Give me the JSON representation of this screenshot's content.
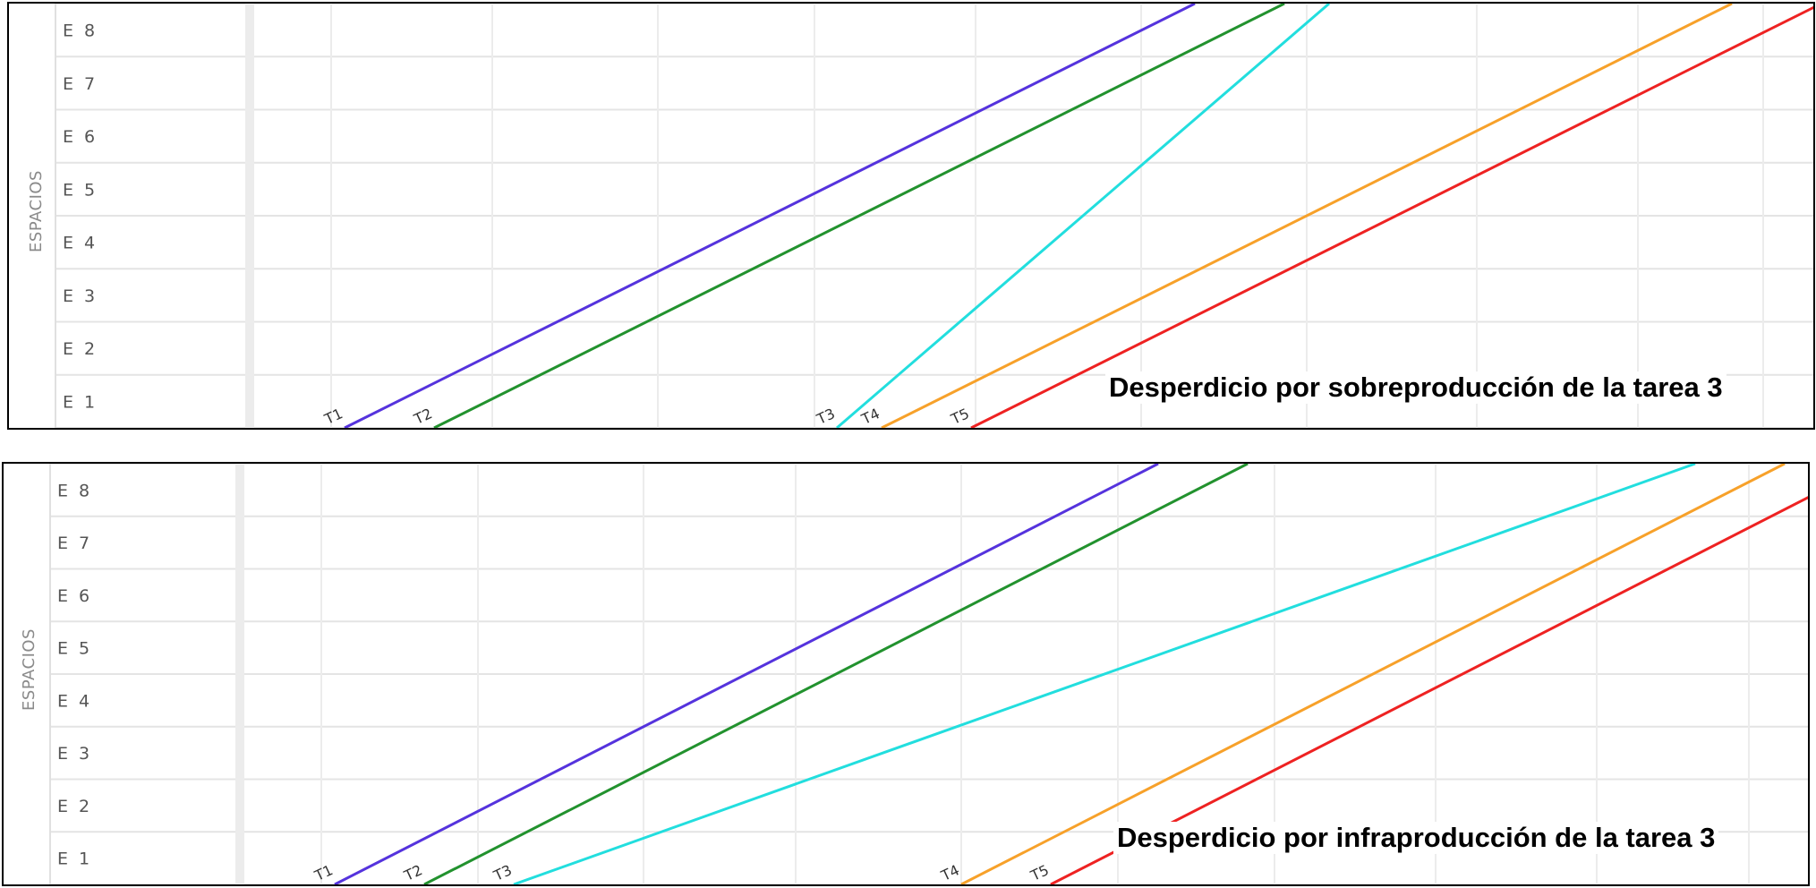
{
  "chart_data": [
    {
      "type": "line",
      "caption": "Desperdicio por sobreproducción de la tarea 3",
      "ylabel": "ESPACIOS",
      "yticks": [
        "E 1",
        "E 2",
        "E 3",
        "E 4",
        "E 5",
        "E 6",
        "E 7",
        "E 8"
      ],
      "grid": true,
      "series": [
        {
          "name": "T1",
          "color": "#5533dd",
          "points": [
            [
              0.1,
              0
            ],
            [
              1.05,
              8
            ]
          ]
        },
        {
          "name": "T2",
          "color": "#22922e",
          "points": [
            [
              0.2,
              0
            ],
            [
              1.15,
              8
            ]
          ]
        },
        {
          "name": "T3",
          "color": "#22dede",
          "points": [
            [
              0.65,
              0
            ],
            [
              1.2,
              8
            ]
          ]
        },
        {
          "name": "T4",
          "color": "#f7a12a",
          "points": [
            [
              0.7,
              0
            ],
            [
              1.65,
              8
            ]
          ]
        },
        {
          "name": "T5",
          "color": "#ee2222",
          "points": [
            [
              0.8,
              0
            ],
            [
              1.75,
              8
            ]
          ]
        }
      ]
    },
    {
      "type": "line",
      "caption": "Desperdicio por infraproducción de la tarea 3",
      "ylabel": "ESPACIOS",
      "yticks": [
        "E 1",
        "E 2",
        "E 3",
        "E 4",
        "E 5",
        "E 6",
        "E 7",
        "E 8"
      ],
      "grid": true,
      "series": [
        {
          "name": "T1",
          "color": "#5533dd",
          "points": [
            [
              0.1,
              0
            ],
            [
              1.02,
              8
            ]
          ]
        },
        {
          "name": "T2",
          "color": "#22922e",
          "points": [
            [
              0.2,
              0
            ],
            [
              1.12,
              8
            ]
          ]
        },
        {
          "name": "T3",
          "color": "#22dede",
          "points": [
            [
              0.3,
              0
            ],
            [
              1.62,
              8
            ]
          ]
        },
        {
          "name": "T4",
          "color": "#f7a12a",
          "points": [
            [
              0.8,
              0
            ],
            [
              1.72,
              8
            ]
          ]
        },
        {
          "name": "T5",
          "color": "#ee2222",
          "points": [
            [
              0.9,
              0
            ],
            [
              1.82,
              8
            ]
          ]
        }
      ]
    }
  ]
}
